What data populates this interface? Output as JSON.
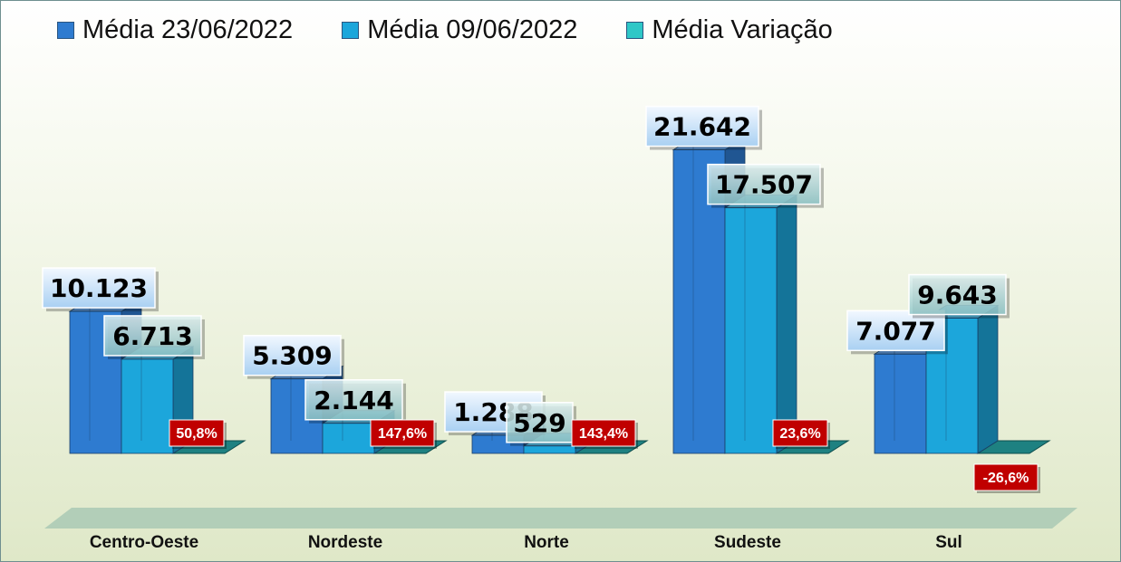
{
  "chart_data": {
    "type": "bar",
    "categories": [
      "Centro-Oeste",
      "Nordeste",
      "Norte",
      "Sudeste",
      "Sul"
    ],
    "series": [
      {
        "name": "Média 23/06/2022",
        "values": [
          10123,
          5309,
          1288,
          21642,
          7077
        ],
        "labels": [
          "10.123",
          "5.309",
          "1.288",
          "21.642",
          "7.077"
        ],
        "color": "#2e7bd0"
      },
      {
        "name": "Média 09/06/2022",
        "values": [
          6713,
          2144,
          529,
          17507,
          9643
        ],
        "labels": [
          "6.713",
          "2.144",
          "529",
          "17.507",
          "9.643"
        ],
        "color": "#1ca6db"
      },
      {
        "name": "Média Variação",
        "values": [
          50.8,
          147.6,
          143.4,
          23.6,
          -26.6
        ],
        "labels": [
          "50,8%",
          "147,6%",
          "143,4%",
          "23,6%",
          "-26,6%"
        ],
        "color": "#2ec7c7"
      }
    ],
    "legend_position": "top",
    "grid": false,
    "three_d": true,
    "variation_label_color": "#c00000"
  }
}
